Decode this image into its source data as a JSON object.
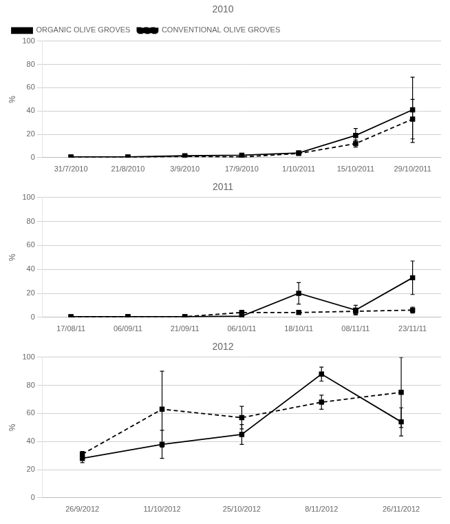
{
  "chart_data": [
    {
      "type": "line",
      "title": "2010",
      "y_label": "%",
      "categories": [
        "31/7/2010",
        "21/8/2010",
        "3/9/2010",
        "17/9/2010",
        "1/10/2011",
        "15/10/2011",
        "29/10/2011"
      ],
      "series": [
        {
          "name": "CONVENTIONAL OLIVE GROVES",
          "color": "#000000",
          "line_style": "dashed",
          "marker": "square",
          "values": [
            0.3,
            0.3,
            1.0,
            0.5,
            3.5,
            12.0,
            33.0
          ],
          "errors": [
            0.2,
            0.2,
            0.5,
            0.3,
            1.0,
            3.0,
            17.0
          ]
        },
        {
          "name": "ORGANIC OLIVE GROVES",
          "color": "#000000",
          "line_style": "solid",
          "marker": "square",
          "values": [
            0.5,
            0.5,
            1.5,
            2.0,
            4.0,
            19.0,
            41.0
          ],
          "errors": [
            0.3,
            0.3,
            0.5,
            0.5,
            1.0,
            6.0,
            28.0
          ]
        }
      ],
      "ylim": [
        0,
        100
      ],
      "yticks": [
        0,
        20,
        40,
        60,
        80,
        100
      ],
      "grid": true,
      "legend": "upper left"
    },
    {
      "type": "line",
      "title": "2011",
      "y_label": "%",
      "categories": [
        "17/08/11",
        "06/09/11",
        "21/09/11",
        "06/10/11",
        "18/10/11",
        "08/11/11",
        "23/11/11"
      ],
      "series": [
        {
          "name": "CONVENTIONAL OLIVE GROVES",
          "color": "#000000",
          "line_style": "dashed",
          "marker": "square",
          "values": [
            0.3,
            0.5,
            0.5,
            4.0,
            4.0,
            5.0,
            6.0
          ],
          "errors": [
            0.2,
            0.3,
            0.3,
            1.5,
            1.0,
            2.5,
            2.5
          ]
        },
        {
          "name": "ORGANIC OLIVE GROVES",
          "color": "#000000",
          "line_style": "solid",
          "marker": "square",
          "values": [
            0.5,
            0.5,
            0.5,
            1.0,
            20.0,
            6.0,
            33.0
          ],
          "errors": [
            0.3,
            0.3,
            0.3,
            0.5,
            9.0,
            4.0,
            14.0
          ]
        }
      ],
      "ylim": [
        0,
        100
      ],
      "yticks": [
        0,
        20,
        40,
        60,
        80,
        100
      ],
      "grid": true
    },
    {
      "type": "line",
      "title": "2012",
      "y_label": "%",
      "categories": [
        "26/9/2012",
        "11/10/2012",
        "25/10/2012",
        "8/11/2012",
        "26/11/2012"
      ],
      "series": [
        {
          "name": "CONVENTIONAL OLIVE GROVES",
          "color": "#000000",
          "line_style": "dashed",
          "marker": "square",
          "values": [
            31.0,
            63.0,
            57.0,
            68.0,
            75.0
          ],
          "errors": [
            2.0,
            27.0,
            8.0,
            5.0,
            25.0
          ]
        },
        {
          "name": "ORGANIC OLIVE GROVES",
          "color": "#000000",
          "line_style": "solid",
          "marker": "square",
          "values": [
            28.0,
            38.0,
            45.0,
            88.0,
            54.0
          ],
          "errors": [
            3.0,
            10.0,
            7.0,
            5.0,
            10.0
          ]
        }
      ],
      "ylim": [
        0,
        100
      ],
      "yticks": [
        0,
        20,
        40,
        60,
        80,
        100
      ],
      "grid": true
    }
  ]
}
